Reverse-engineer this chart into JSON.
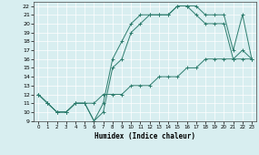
{
  "xlabel": "Humidex (Indice chaleur)",
  "xlim": [
    -0.5,
    23.5
  ],
  "ylim": [
    9,
    22.5
  ],
  "xticks": [
    0,
    1,
    2,
    3,
    4,
    5,
    6,
    7,
    8,
    9,
    10,
    11,
    12,
    13,
    14,
    15,
    16,
    17,
    18,
    19,
    20,
    21,
    22,
    23
  ],
  "yticks": [
    9,
    10,
    11,
    12,
    13,
    14,
    15,
    16,
    17,
    18,
    19,
    20,
    21,
    22
  ],
  "line_color": "#2e7d6e",
  "bg_color": "#d8eef0",
  "grid_color": "#b8d8da",
  "line1_x": [
    0,
    1,
    2,
    3,
    4,
    5,
    6,
    7,
    8,
    9,
    10,
    11,
    12,
    13,
    14,
    15,
    16,
    17,
    18,
    19,
    20,
    21,
    22,
    23
  ],
  "line1_y": [
    12,
    11,
    10,
    10,
    11,
    11,
    9,
    11,
    16,
    18,
    20,
    21,
    21,
    21,
    21,
    22,
    22,
    22,
    21,
    21,
    21,
    17,
    21,
    16
  ],
  "line2_x": [
    0,
    1,
    2,
    3,
    4,
    5,
    6,
    7,
    8,
    9,
    10,
    11,
    12,
    13,
    14,
    15,
    16,
    17,
    18,
    19,
    20,
    21,
    22,
    23
  ],
  "line2_y": [
    12,
    11,
    10,
    10,
    11,
    11,
    9,
    10,
    15,
    16,
    19,
    20,
    21,
    21,
    21,
    22,
    22,
    21,
    20,
    20,
    20,
    16,
    17,
    16
  ],
  "line3_x": [
    0,
    1,
    2,
    3,
    4,
    5,
    6,
    7,
    8,
    9,
    10,
    11,
    12,
    13,
    14,
    15,
    16,
    17,
    18,
    19,
    20,
    21,
    22,
    23
  ],
  "line3_y": [
    12,
    11,
    10,
    10,
    11,
    11,
    11,
    12,
    12,
    12,
    13,
    13,
    13,
    14,
    14,
    14,
    15,
    15,
    16,
    16,
    16,
    16,
    16,
    16
  ]
}
